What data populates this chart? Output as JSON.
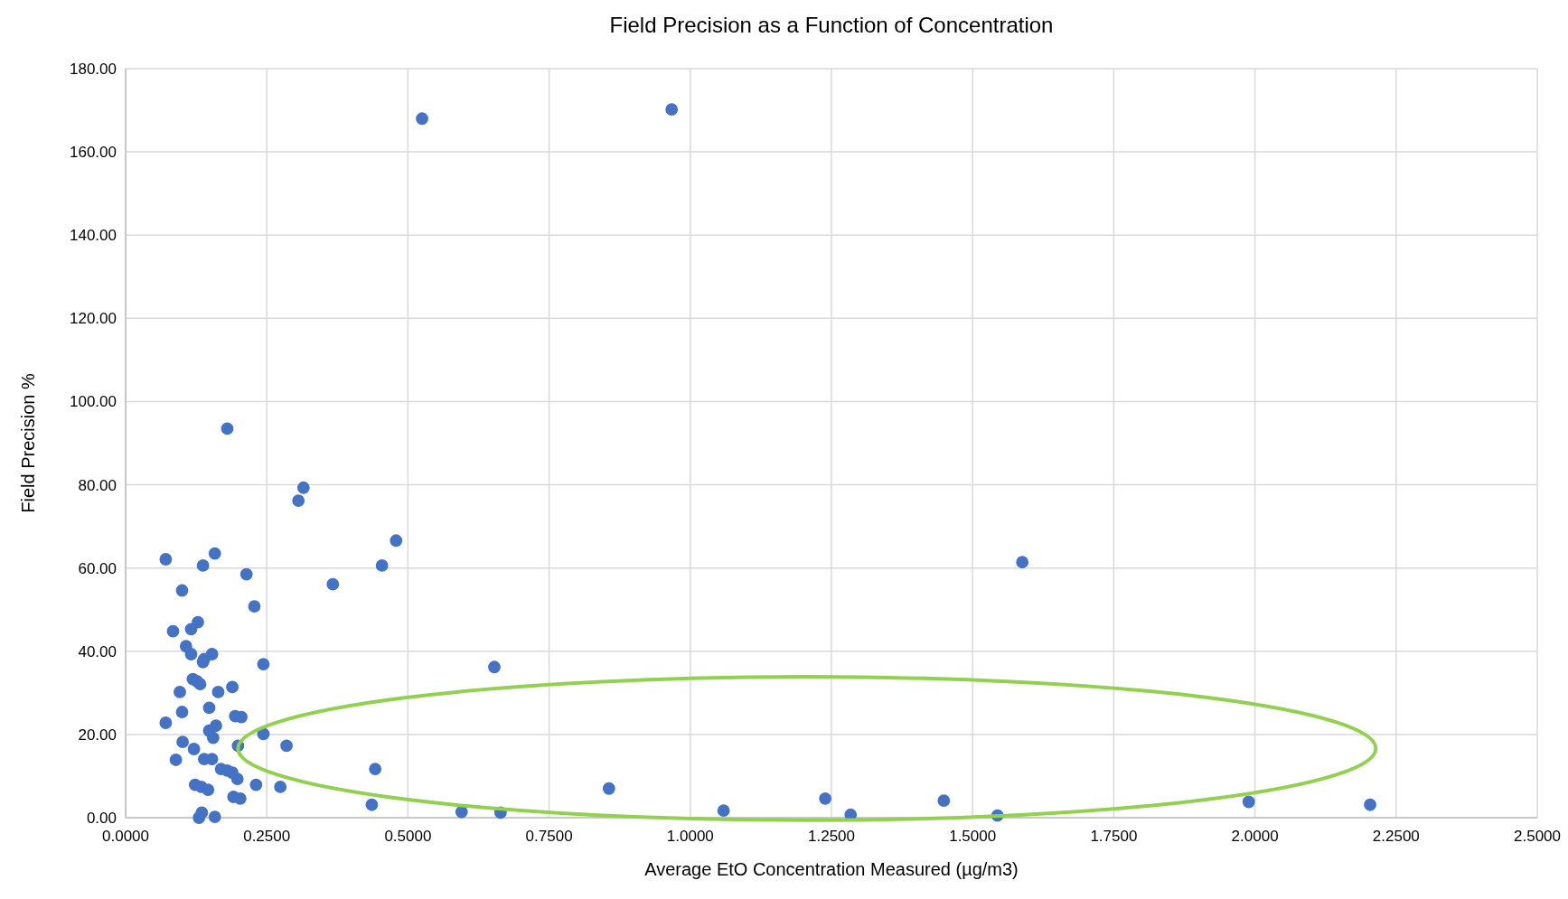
{
  "chart_data": {
    "type": "scatter",
    "title": "Field Precision as a Function of Concentration",
    "xlabel": "Average EtO Concentration Measured (µg/m3)",
    "ylabel": "Field Precision %",
    "xlim": [
      0,
      2.5
    ],
    "xticks": [
      {
        "value": 0,
        "label": "0.0000"
      },
      {
        "value": 0.25,
        "label": "0.2500"
      },
      {
        "value": 0.5,
        "label": "0.5000"
      },
      {
        "value": 0.75,
        "label": "0.7500"
      },
      {
        "value": 1,
        "label": "1.0000"
      },
      {
        "value": 1.25,
        "label": "1.2500"
      },
      {
        "value": 1.5,
        "label": "1.5000"
      },
      {
        "value": 1.75,
        "label": "1.7500"
      },
      {
        "value": 2,
        "label": "2.0000"
      },
      {
        "value": 2.25,
        "label": "2.2500"
      },
      {
        "value": 2.5,
        "label": "2.5000"
      }
    ],
    "ylim": [
      0,
      180
    ],
    "yticks": [
      {
        "value": 0,
        "label": "0.00"
      },
      {
        "value": 20,
        "label": "20.00"
      },
      {
        "value": 40,
        "label": "40.00"
      },
      {
        "value": 60,
        "label": "60.00"
      },
      {
        "value": 80,
        "label": "80.00"
      },
      {
        "value": 100,
        "label": "100.00"
      },
      {
        "value": 120,
        "label": "120.00"
      },
      {
        "value": 140,
        "label": "140.00"
      },
      {
        "value": 160,
        "label": "160.00"
      },
      {
        "value": 180,
        "label": "180.00"
      }
    ],
    "grid": true,
    "marker": "circle",
    "series": [
      {
        "color": "#4472c4",
        "x": [
          0.071,
          0.137,
          0.158,
          0.214,
          0.1,
          0.228,
          0.084,
          0.128,
          0.116,
          0.107,
          0.116,
          0.139,
          0.153,
          0.137,
          0.244,
          0.119,
          0.126,
          0.132,
          0.096,
          0.164,
          0.189,
          0.148,
          0.1,
          0.071,
          0.194,
          0.205,
          0.16,
          0.148,
          0.155,
          0.244,
          0.101,
          0.121,
          0.199,
          0.285,
          0.089,
          0.139,
          0.153,
          0.169,
          0.18,
          0.189,
          0.198,
          0.123,
          0.134,
          0.146,
          0.231,
          0.274,
          0.191,
          0.203,
          0.135,
          0.158,
          0.13,
          0.18,
          0.315,
          0.306,
          0.479,
          0.454,
          0.367,
          0.653,
          0.525,
          0.967,
          1.588,
          0.442,
          0.436,
          0.595,
          0.664,
          0.856,
          1.059,
          1.239,
          1.284,
          1.449,
          1.544,
          1.989,
          2.204
        ],
        "values": [
          62.1,
          60.6,
          63.5,
          58.5,
          54.6,
          50.8,
          44.8,
          47,
          45.3,
          41.2,
          39.3,
          38.1,
          39.3,
          37.4,
          36.9,
          33.3,
          32.8,
          32.1,
          30.2,
          30.2,
          31.4,
          26.4,
          25.4,
          22.8,
          24.4,
          24.2,
          22.1,
          20.9,
          19.2,
          20.1,
          18.2,
          16.5,
          17.3,
          17.3,
          13.9,
          14.1,
          14.1,
          11.7,
          11.3,
          10.8,
          9.3,
          7.9,
          7.4,
          6.7,
          7.9,
          7.4,
          5,
          4.6,
          1.2,
          0.2,
          0,
          93.5,
          79.3,
          76.2,
          66.6,
          60.6,
          56.1,
          36.2,
          168,
          170.2,
          61.4,
          11.7,
          3.1,
          1.4,
          1.2,
          7,
          1.7,
          4.6,
          0.7,
          4.1,
          0.5,
          3.8,
          3.1
        ]
      }
    ]
  }
}
